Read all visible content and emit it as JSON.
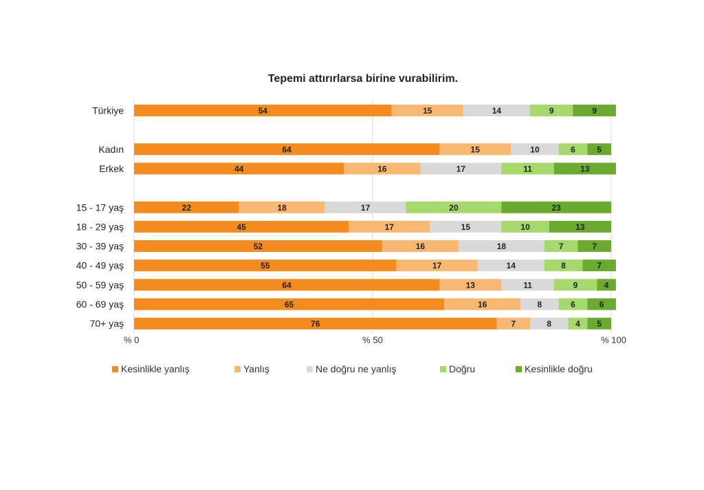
{
  "chart_data": {
    "type": "bar",
    "orientation": "horizontal-stacked",
    "title": "Tepemi attırırlarsa birine vurabilirim.",
    "xlabel": "",
    "ylabel": "",
    "xlim": [
      0,
      100
    ],
    "x_ticks": [
      "% 0",
      "% 50",
      "% 100"
    ],
    "grid": true,
    "legend_position": "bottom",
    "categories": [
      "Türkiye",
      "Kadın",
      "Erkek",
      "15 - 17 yaş",
      "18 - 29 yaş",
      "30 - 39 yaş",
      "40 - 49 yaş",
      "50 - 59 yaş",
      "60 - 69 yaş",
      "70+ yaş"
    ],
    "category_groups": [
      [
        0
      ],
      [
        1,
        2
      ],
      [
        3,
        4,
        5,
        6,
        7,
        8,
        9
      ]
    ],
    "series": [
      {
        "name": "Kesinlikle yanlış",
        "color": "#f38b1f",
        "values": [
          54,
          64,
          44,
          22,
          45,
          52,
          55,
          64,
          65,
          76
        ]
      },
      {
        "name": "Yanlış",
        "color": "#f8b872",
        "values": [
          15,
          15,
          16,
          18,
          17,
          16,
          17,
          13,
          16,
          7
        ]
      },
      {
        "name": "Ne doğru ne yanlış",
        "color": "#d9d9d9",
        "values": [
          14,
          10,
          17,
          17,
          15,
          18,
          14,
          11,
          8,
          8
        ]
      },
      {
        "name": "Doğru",
        "color": "#a6d86e",
        "values": [
          9,
          6,
          11,
          20,
          10,
          7,
          8,
          9,
          6,
          4
        ]
      },
      {
        "name": "Kesinlikle doğru",
        "color": "#6aaa2e",
        "values": [
          9,
          5,
          13,
          23,
          13,
          7,
          7,
          4,
          6,
          5
        ]
      }
    ]
  }
}
